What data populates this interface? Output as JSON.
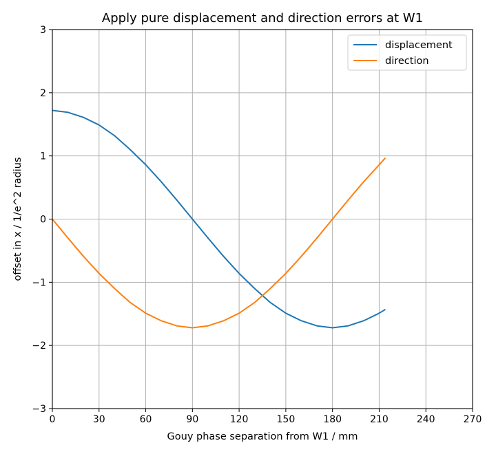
{
  "chart_data": {
    "type": "line",
    "title": "Apply pure displacement and direction errors at W1",
    "xlabel": "Gouy phase separation from W1 / mm",
    "ylabel": "offset in x / 1/e^2 radius",
    "xlim": [
      0,
      270
    ],
    "ylim": [
      -3,
      3
    ],
    "xticks": [
      0,
      30,
      60,
      90,
      120,
      150,
      180,
      210,
      240,
      270
    ],
    "yticks": [
      -3,
      -2,
      -1,
      0,
      1,
      2,
      3
    ],
    "xtick_labels": [
      "0",
      "30",
      "60",
      "90",
      "120",
      "150",
      "180",
      "210",
      "240",
      "270"
    ],
    "ytick_labels": [
      "−3",
      "−2",
      "−1",
      "0",
      "1",
      "2",
      "3"
    ],
    "grid": true,
    "legend_position": "top-right",
    "x": [
      0,
      10,
      20,
      30,
      40,
      50,
      60,
      70,
      80,
      90,
      100,
      110,
      120,
      130,
      140,
      150,
      160,
      170,
      180,
      190,
      200,
      210,
      214
    ],
    "series": [
      {
        "name": "displacement",
        "color": "#1f77b4",
        "values": [
          1.72,
          1.69,
          1.61,
          1.49,
          1.32,
          1.1,
          0.86,
          0.59,
          0.3,
          0.0,
          -0.3,
          -0.59,
          -0.86,
          -1.1,
          -1.32,
          -1.49,
          -1.61,
          -1.69,
          -1.72,
          -1.69,
          -1.61,
          -1.49,
          -1.43
        ]
      },
      {
        "name": "direction",
        "color": "#ff7f0e",
        "values": [
          0.0,
          -0.3,
          -0.59,
          -0.86,
          -1.1,
          -1.32,
          -1.49,
          -1.61,
          -1.69,
          -1.72,
          -1.69,
          -1.61,
          -1.49,
          -1.32,
          -1.1,
          -0.86,
          -0.59,
          -0.3,
          0.0,
          0.3,
          0.59,
          0.86,
          0.97
        ]
      }
    ]
  }
}
